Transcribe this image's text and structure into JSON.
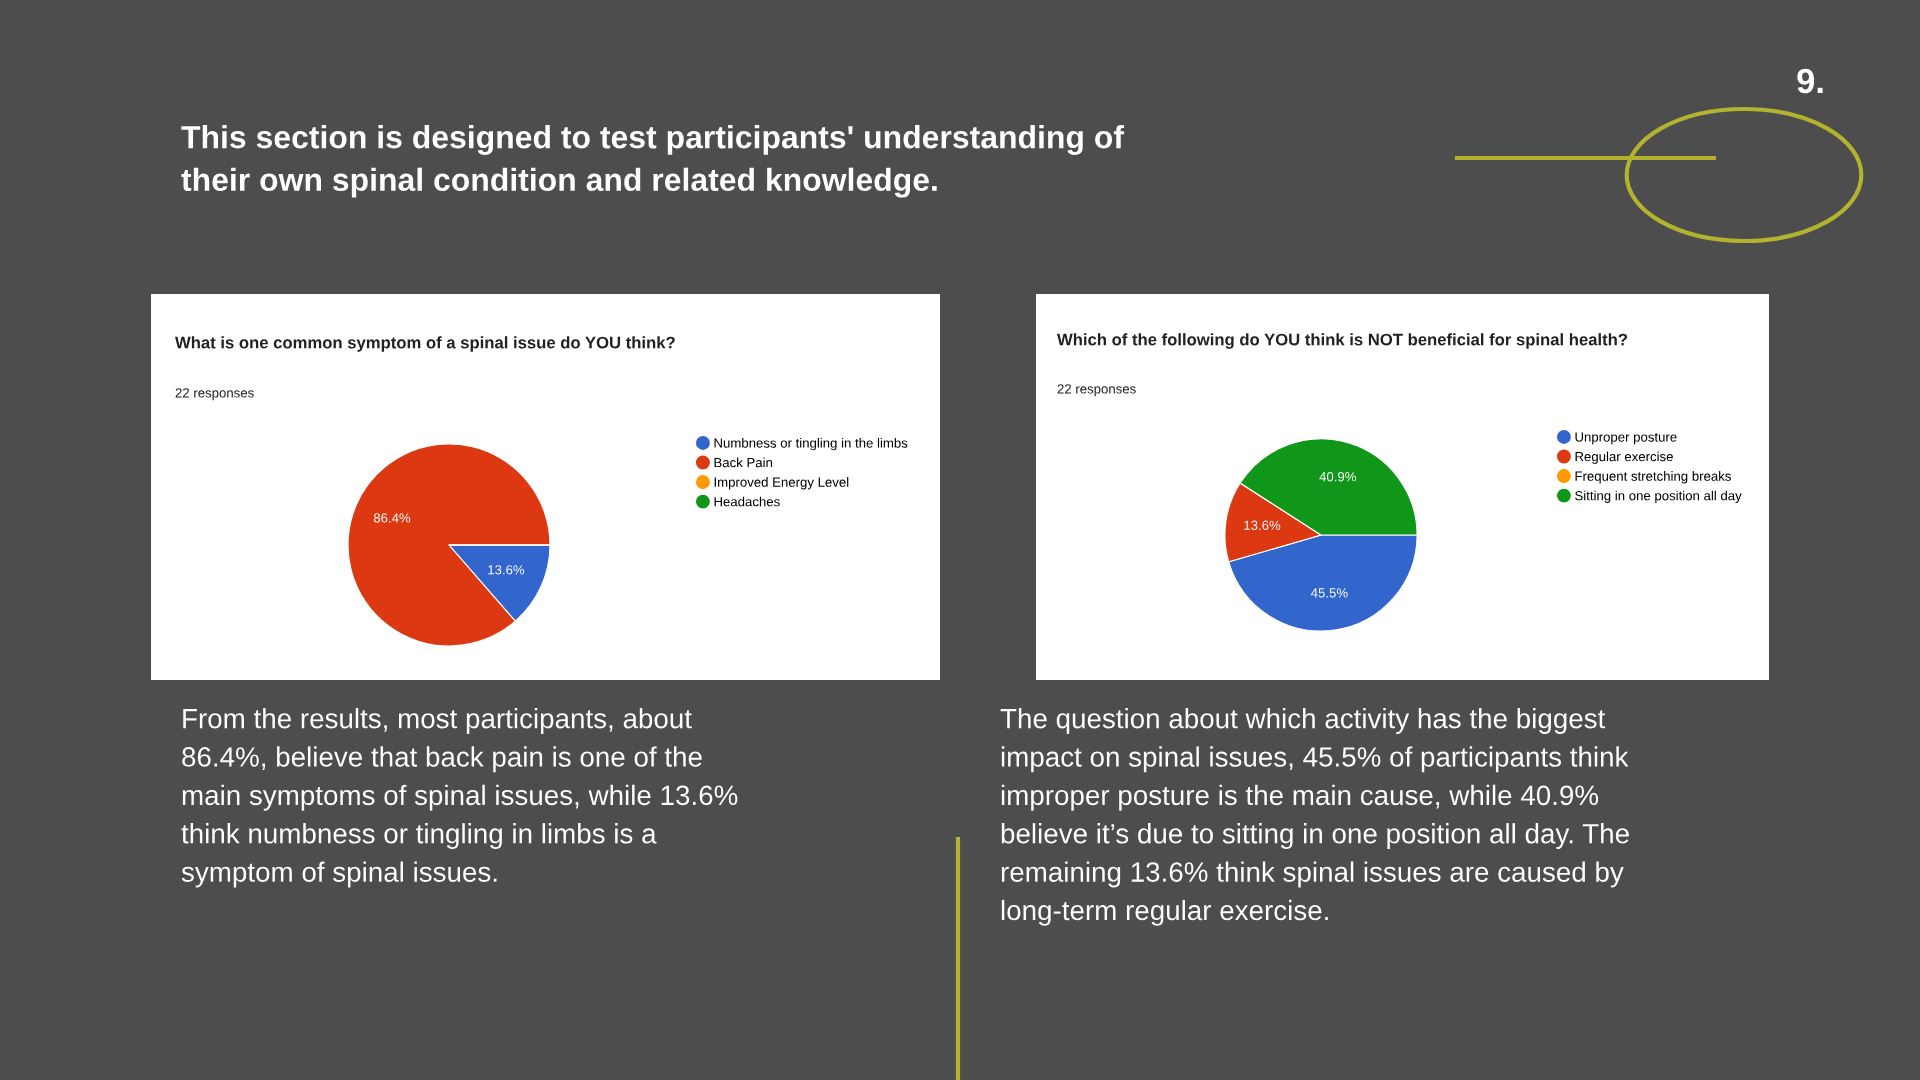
{
  "chart_data": [
    {
      "type": "other",
      "title": "This section is designed to test participants' understanding of\ntheir own spinal condition and related knowledge.",
      "annotations": [
        "9."
      ]
    },
    {
      "type": "pie",
      "title": "What is one common symptom of a spinal issue do YOU think?",
      "subtitle": "22 responses",
      "categories": [
        "Numbness or tingling in the limbs",
        "Back Pain",
        "Improved Energy Level",
        "Headaches"
      ],
      "values": [
        13.6,
        86.4,
        0,
        0
      ],
      "colors": [
        "#3366cc",
        "#dc3912",
        "#ff9900",
        "#109618"
      ],
      "value_labels": [
        "13.6%",
        "86.4%",
        null,
        null
      ],
      "legend": "right",
      "annotations": [
        "From the results, most participants, about\n86.4%, believe that back pain is one of the\nmain symptoms of spinal issues, while 13.6%\nthink numbness or tingling in limbs is a\nsymptom of spinal issues."
      ]
    },
    {
      "type": "pie",
      "title": "Which of the following do YOU think is NOT beneficial for spinal health?",
      "subtitle": "22 responses",
      "categories": [
        "Unproper posture",
        "Regular exercise",
        "Frequent stretching breaks",
        "Sitting in one position all day"
      ],
      "values": [
        45.5,
        13.6,
        0,
        40.9
      ],
      "colors": [
        "#3366cc",
        "#dc3912",
        "#ff9900",
        "#109618"
      ],
      "value_labels": [
        "45.5%",
        "13.6%",
        null,
        "40.9%"
      ],
      "legend": "right",
      "annotations": [
        "The question about which activity has the biggest\nimpact on spinal issues, 45.5% of participants think\nimproper posture is the main cause, while 40.9%\nbelieve it’s due to sitting in one position all day. The\nremaining 13.6% think spinal issues are caused by\nlong-term regular exercise."
      ]
    }
  ]
}
